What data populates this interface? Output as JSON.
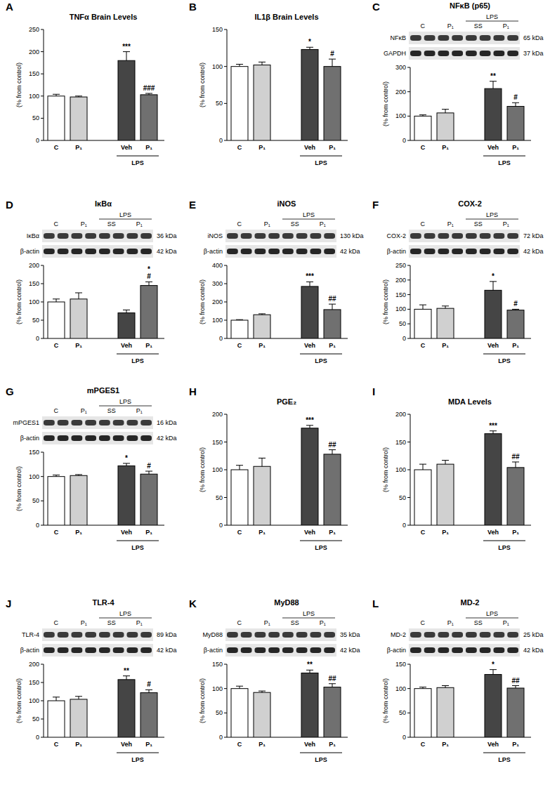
{
  "chart_data": [
    {
      "panel": "A",
      "type": "bar",
      "title": "TNFα Brain Levels",
      "y_label": "(% from control)",
      "categories": [
        "C",
        "P₁",
        "Veh",
        "P₁"
      ],
      "values": [
        100,
        98,
        180,
        103
      ],
      "errors": [
        4,
        2,
        20,
        3
      ],
      "significance": [
        [],
        [],
        [
          "***"
        ],
        [
          "###"
        ]
      ],
      "colors": [
        "#ffffff",
        "#d0d0d0",
        "#454545",
        "#707070"
      ],
      "ylim": [
        0,
        250
      ],
      "yticks": [
        0,
        50,
        100,
        150,
        200,
        250
      ],
      "groups": [
        {
          "label": "LPS",
          "categories": [
            2,
            3
          ]
        }
      ]
    },
    {
      "panel": "B",
      "type": "bar",
      "title": "IL1β Brain Levels",
      "y_label": "(% from control)",
      "categories": [
        "C",
        "P₁",
        "Veh",
        "P₁"
      ],
      "values": [
        100,
        102,
        123,
        100
      ],
      "errors": [
        3,
        4,
        3,
        10
      ],
      "significance": [
        [],
        [],
        [
          "*"
        ],
        [
          "#"
        ]
      ],
      "colors": [
        "#ffffff",
        "#d0d0d0",
        "#454545",
        "#707070"
      ],
      "ylim": [
        0,
        150
      ],
      "yticks": [
        0,
        50,
        100,
        150
      ],
      "groups": [
        {
          "label": "LPS",
          "categories": [
            2,
            3
          ]
        }
      ]
    },
    {
      "panel": "C",
      "type": "bar",
      "title": "NFκB (p65)",
      "y_label": "(% from control)",
      "categories": [
        "C",
        "P₁",
        "Veh",
        "P₁"
      ],
      "values": [
        100,
        113,
        213,
        140
      ],
      "errors": [
        5,
        15,
        30,
        15
      ],
      "significance": [
        [],
        [],
        [
          "**"
        ],
        [
          "#"
        ]
      ],
      "colors": [
        "#ffffff",
        "#d0d0d0",
        "#454545",
        "#707070"
      ],
      "ylim": [
        0,
        300
      ],
      "yticks": [
        0,
        100,
        200,
        300
      ],
      "groups": [
        {
          "label": "LPS",
          "categories": [
            2,
            3
          ]
        }
      ],
      "blot": {
        "treatment": {
          "label": "LPS",
          "lane_groups": [
            2,
            3
          ]
        },
        "lane_groups": [
          {
            "label": "C",
            "lanes": 2
          },
          {
            "label": "P₁",
            "lanes": 2
          },
          {
            "label": "SS",
            "lanes": 2
          },
          {
            "label": "P₁",
            "lanes": 2
          }
        ],
        "bands": [
          {
            "name": "NFκB",
            "kda": "65 kDa"
          },
          {
            "name": "GAPDH",
            "kda": "37 kDa"
          }
        ]
      }
    },
    {
      "panel": "D",
      "type": "bar",
      "title": "IκBα",
      "y_label": "(% from control)",
      "categories": [
        "C",
        "P₁",
        "Veh",
        "P₁"
      ],
      "values": [
        100,
        108,
        70,
        145
      ],
      "errors": [
        8,
        17,
        8,
        10
      ],
      "significance": [
        [],
        [],
        [],
        [
          "*",
          "#"
        ]
      ],
      "colors": [
        "#ffffff",
        "#d0d0d0",
        "#454545",
        "#707070"
      ],
      "ylim": [
        0,
        200
      ],
      "yticks": [
        0,
        50,
        100,
        150,
        200
      ],
      "groups": [
        {
          "label": "LPS",
          "categories": [
            2,
            3
          ]
        }
      ],
      "blot": {
        "treatment": {
          "label": "LPS",
          "lane_groups": [
            2,
            3
          ]
        },
        "lane_groups": [
          {
            "label": "C",
            "lanes": 2
          },
          {
            "label": "P₁",
            "lanes": 2
          },
          {
            "label": "SS",
            "lanes": 2
          },
          {
            "label": "P₁",
            "lanes": 2
          }
        ],
        "bands": [
          {
            "name": "IκBα",
            "kda": "36 kDa"
          },
          {
            "name": "β-actin",
            "kda": "42 kDa"
          }
        ]
      }
    },
    {
      "panel": "E",
      "type": "bar",
      "title": "iNOS",
      "y_label": "(% from control)",
      "categories": [
        "C",
        "P₁",
        "Veh",
        "P₁"
      ],
      "values": [
        100,
        130,
        285,
        158
      ],
      "errors": [
        3,
        5,
        25,
        30
      ],
      "significance": [
        [],
        [],
        [
          "***"
        ],
        [
          "##"
        ]
      ],
      "colors": [
        "#ffffff",
        "#d0d0d0",
        "#454545",
        "#707070"
      ],
      "ylim": [
        0,
        400
      ],
      "yticks": [
        0,
        100,
        200,
        300,
        400
      ],
      "groups": [
        {
          "label": "LPS",
          "categories": [
            2,
            3
          ]
        }
      ],
      "blot": {
        "treatment": {
          "label": "LPS",
          "lane_groups": [
            2,
            3
          ]
        },
        "lane_groups": [
          {
            "label": "C",
            "lanes": 2
          },
          {
            "label": "P₁",
            "lanes": 2
          },
          {
            "label": "SS",
            "lanes": 2
          },
          {
            "label": "P₁",
            "lanes": 2
          }
        ],
        "bands": [
          {
            "name": "iNOS",
            "kda": "130 kDa"
          },
          {
            "name": "β-actin",
            "kda": "42 kDa"
          }
        ]
      }
    },
    {
      "panel": "F",
      "type": "bar",
      "title": "COX-2",
      "y_label": "(% from control)",
      "categories": [
        "C",
        "P₁",
        "Veh",
        "P₁"
      ],
      "values": [
        100,
        103,
        165,
        97
      ],
      "errors": [
        15,
        8,
        30,
        3
      ],
      "significance": [
        [],
        [],
        [
          "*"
        ],
        [
          "#"
        ]
      ],
      "colors": [
        "#ffffff",
        "#d0d0d0",
        "#454545",
        "#707070"
      ],
      "ylim": [
        0,
        250
      ],
      "yticks": [
        0,
        50,
        100,
        150,
        200,
        250
      ],
      "groups": [
        {
          "label": "LPS",
          "categories": [
            2,
            3
          ]
        }
      ],
      "blot": {
        "treatment": {
          "label": "LPS",
          "lane_groups": [
            2,
            3
          ]
        },
        "lane_groups": [
          {
            "label": "C",
            "lanes": 2
          },
          {
            "label": "P₁",
            "lanes": 2
          },
          {
            "label": "SS",
            "lanes": 2
          },
          {
            "label": "P₁",
            "lanes": 2
          }
        ],
        "bands": [
          {
            "name": "COX-2",
            "kda": "72 kDa"
          },
          {
            "name": "β-actin",
            "kda": "42 kDa"
          }
        ]
      }
    },
    {
      "panel": "G",
      "type": "bar",
      "title": "mPGES1",
      "y_label": "(% from control)",
      "categories": [
        "C",
        "P₁",
        "Veh",
        "P₁"
      ],
      "values": [
        100,
        102,
        122,
        105
      ],
      "errors": [
        3,
        2,
        5,
        6
      ],
      "significance": [
        [],
        [],
        [
          "*"
        ],
        [
          "#"
        ]
      ],
      "colors": [
        "#ffffff",
        "#d0d0d0",
        "#454545",
        "#707070"
      ],
      "ylim": [
        0,
        150
      ],
      "yticks": [
        0,
        50,
        100,
        150
      ],
      "groups": [
        {
          "label": "LPS",
          "categories": [
            2,
            3
          ]
        }
      ],
      "blot": {
        "treatment": {
          "label": "LPS",
          "lane_groups": [
            2,
            3
          ]
        },
        "lane_groups": [
          {
            "label": "C",
            "lanes": 2
          },
          {
            "label": "P₁",
            "lanes": 2
          },
          {
            "label": "SS",
            "lanes": 2
          },
          {
            "label": "P₁",
            "lanes": 2
          }
        ],
        "bands": [
          {
            "name": "mPGES1",
            "kda": "16 kDa"
          },
          {
            "name": "β-actin",
            "kda": "42 kDa"
          }
        ]
      }
    },
    {
      "panel": "H",
      "type": "bar",
      "title": "PGE₂",
      "y_label": "(% from control)",
      "categories": [
        "C",
        "P₁",
        "Veh",
        "P₁"
      ],
      "values": [
        100,
        106,
        175,
        128
      ],
      "errors": [
        8,
        15,
        5,
        8
      ],
      "significance": [
        [],
        [],
        [
          "***"
        ],
        [
          "##"
        ]
      ],
      "colors": [
        "#ffffff",
        "#d0d0d0",
        "#454545",
        "#707070"
      ],
      "ylim": [
        0,
        200
      ],
      "yticks": [
        0,
        50,
        100,
        150,
        200
      ],
      "groups": [
        {
          "label": "LPS",
          "categories": [
            2,
            3
          ]
        }
      ]
    },
    {
      "panel": "I",
      "type": "bar",
      "title": "MDA Levels",
      "y_label": "(% from control)",
      "categories": [
        "C",
        "P₁",
        "Veh",
        "P₁"
      ],
      "values": [
        100,
        110,
        165,
        104
      ],
      "errors": [
        10,
        7,
        5,
        10
      ],
      "significance": [
        [],
        [],
        [
          "***"
        ],
        [
          "##"
        ]
      ],
      "colors": [
        "#ffffff",
        "#d0d0d0",
        "#454545",
        "#707070"
      ],
      "ylim": [
        0,
        200
      ],
      "yticks": [
        0,
        50,
        100,
        150,
        200
      ],
      "groups": [
        {
          "label": "LPS",
          "categories": [
            2,
            3
          ]
        }
      ]
    },
    {
      "panel": "J",
      "type": "bar",
      "title": "TLR-4",
      "y_label": "(% from control)",
      "categories": [
        "C",
        "P₁",
        "Veh",
        "P₁"
      ],
      "values": [
        100,
        104,
        158,
        122
      ],
      "errors": [
        10,
        8,
        10,
        8
      ],
      "significance": [
        [],
        [],
        [
          "**"
        ],
        [
          "#"
        ]
      ],
      "colors": [
        "#ffffff",
        "#d0d0d0",
        "#454545",
        "#707070"
      ],
      "ylim": [
        0,
        200
      ],
      "yticks": [
        0,
        50,
        100,
        150,
        200
      ],
      "groups": [
        {
          "label": "LPS",
          "categories": [
            2,
            3
          ]
        }
      ],
      "blot": {
        "treatment": {
          "label": "LPS",
          "lane_groups": [
            2,
            3
          ]
        },
        "lane_groups": [
          {
            "label": "C",
            "lanes": 2
          },
          {
            "label": "P₁",
            "lanes": 2
          },
          {
            "label": "SS",
            "lanes": 2
          },
          {
            "label": "P₁",
            "lanes": 2
          }
        ],
        "bands": [
          {
            "name": "TLR-4",
            "kda": "89 kDa"
          },
          {
            "name": "β-actin",
            "kda": "42 kDa"
          }
        ]
      }
    },
    {
      "panel": "K",
      "type": "bar",
      "title": "MyD88",
      "y_label": "(% from control)",
      "categories": [
        "C",
        "P₁",
        "Veh",
        "P₁"
      ],
      "values": [
        100,
        92,
        132,
        103
      ],
      "errors": [
        5,
        3,
        6,
        7
      ],
      "significance": [
        [],
        [],
        [
          "**"
        ],
        [
          "##"
        ]
      ],
      "colors": [
        "#ffffff",
        "#d0d0d0",
        "#454545",
        "#707070"
      ],
      "ylim": [
        0,
        150
      ],
      "yticks": [
        0,
        50,
        100,
        150
      ],
      "groups": [
        {
          "label": "LPS",
          "categories": [
            2,
            3
          ]
        }
      ],
      "blot": {
        "treatment": {
          "label": "LPS",
          "lane_groups": [
            2,
            3
          ]
        },
        "lane_groups": [
          {
            "label": "C",
            "lanes": 2
          },
          {
            "label": "P₁",
            "lanes": 2
          },
          {
            "label": "SS",
            "lanes": 2
          },
          {
            "label": "P₁",
            "lanes": 2
          }
        ],
        "bands": [
          {
            "name": "MyD88",
            "kda": "35 kDa"
          },
          {
            "name": "β-actin",
            "kda": "42 kDa"
          }
        ]
      }
    },
    {
      "panel": "L",
      "type": "bar",
      "title": "MD-2",
      "y_label": "(% from control)",
      "categories": [
        "C",
        "P₁",
        "Veh",
        "P₁"
      ],
      "values": [
        100,
        102,
        129,
        101
      ],
      "errors": [
        3,
        4,
        10,
        5
      ],
      "significance": [
        [],
        [],
        [
          "*"
        ],
        [
          "##"
        ]
      ],
      "colors": [
        "#ffffff",
        "#d0d0d0",
        "#454545",
        "#707070"
      ],
      "ylim": [
        0,
        150
      ],
      "yticks": [
        0,
        50,
        100,
        150
      ],
      "groups": [
        {
          "label": "LPS",
          "categories": [
            2,
            3
          ]
        }
      ],
      "blot": {
        "treatment": {
          "label": "LPS",
          "lane_groups": [
            2,
            3
          ]
        },
        "lane_groups": [
          {
            "label": "C",
            "lanes": 2
          },
          {
            "label": "P₁",
            "lanes": 2
          },
          {
            "label": "SS",
            "lanes": 2
          },
          {
            "label": "P₁",
            "lanes": 2
          }
        ],
        "bands": [
          {
            "name": "MD-2",
            "kda": "25 kDa"
          },
          {
            "name": "β-actin",
            "kda": "42 kDa"
          }
        ]
      }
    }
  ]
}
